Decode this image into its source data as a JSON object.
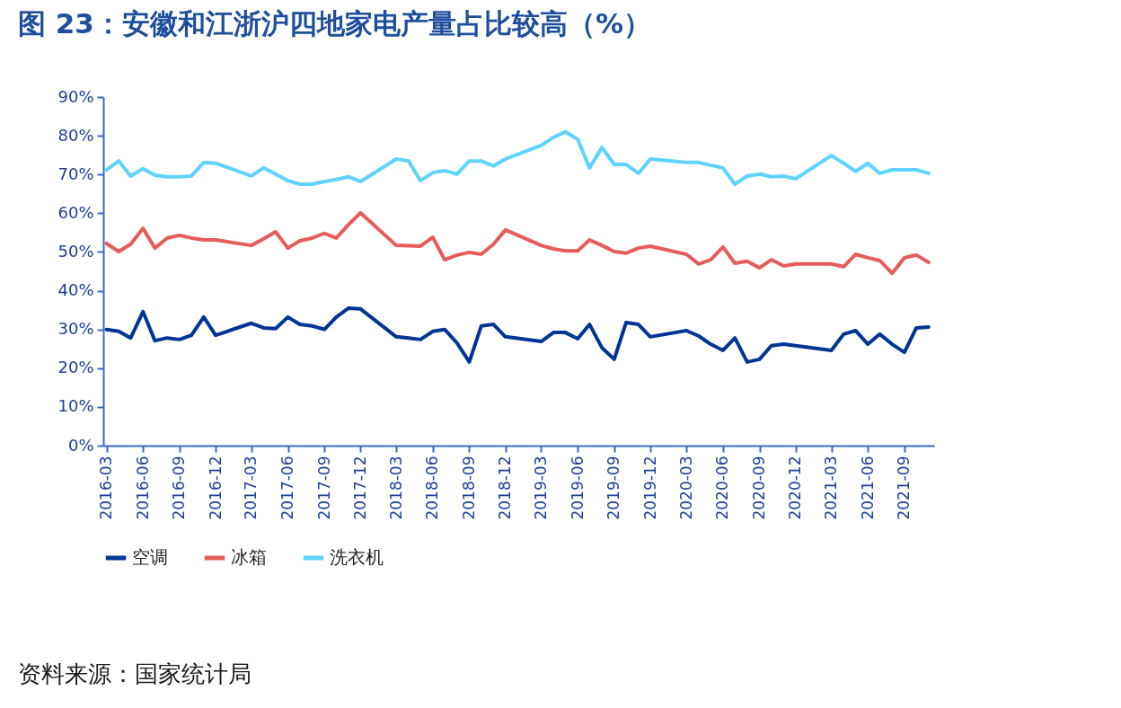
{
  "chart_data": {
    "type": "line",
    "title": "图 23：安徽和江浙沪四地家电产量占比较高（%）",
    "x": [
      "2016-03",
      "2016-04",
      "2016-05",
      "2016-06",
      "2016-07",
      "2016-08",
      "2016-09",
      "2016-10",
      "2016-11",
      "2016-12",
      "2017-03",
      "2017-04",
      "2017-05",
      "2017-06",
      "2017-07",
      "2017-08",
      "2017-09",
      "2017-10",
      "2017-11",
      "2017-12",
      "2018-03",
      "2018-04",
      "2018-05",
      "2018-06",
      "2018-07",
      "2018-08",
      "2018-09",
      "2018-10",
      "2018-11",
      "2018-12",
      "2019-03",
      "2019-04",
      "2019-05",
      "2019-06",
      "2019-07",
      "2019-08",
      "2019-09",
      "2019-10",
      "2019-11",
      "2019-12",
      "2020-03",
      "2020-04",
      "2020-05",
      "2020-06",
      "2020-07",
      "2020-08",
      "2020-09",
      "2020-10",
      "2020-11",
      "2020-12",
      "2021-03",
      "2021-04",
      "2021-05",
      "2021-06",
      "2021-07",
      "2021-08",
      "2021-09",
      "2021-10",
      "2021-11"
    ],
    "series": [
      {
        "name": "空调",
        "color": "#003595",
        "values": [
          30.0,
          29.5,
          27.8,
          34.6,
          27.1,
          27.8,
          27.4,
          28.5,
          33.2,
          28.5,
          31.6,
          30.4,
          30.2,
          33.2,
          31.3,
          30.9,
          30.0,
          33.2,
          35.5,
          35.3,
          28.1,
          27.8,
          27.4,
          29.5,
          30.0,
          26.5,
          21.6,
          30.9,
          31.3,
          28.1,
          26.9,
          29.2,
          29.2,
          27.6,
          31.3,
          25.3,
          22.3,
          31.8,
          31.3,
          28.1,
          29.7,
          28.3,
          26.2,
          24.6,
          27.8,
          21.6,
          22.3,
          25.8,
          26.2,
          25.8,
          24.6,
          28.8,
          29.7,
          26.2,
          28.8,
          26.2,
          24.1,
          30.4,
          30.6
        ]
      },
      {
        "name": "冰箱",
        "color": "#e75b5b",
        "values": [
          52.2,
          50.1,
          52.0,
          56.1,
          51.0,
          53.6,
          54.3,
          53.6,
          53.1,
          53.1,
          51.7,
          53.4,
          55.2,
          51.0,
          52.9,
          53.6,
          54.8,
          53.6,
          57.1,
          60.1,
          51.7,
          51.6,
          51.5,
          53.8,
          48.0,
          49.2,
          49.9,
          49.4,
          52.0,
          55.7,
          51.7,
          50.8,
          50.3,
          50.3,
          53.1,
          51.7,
          50.1,
          49.7,
          51.0,
          51.5,
          49.4,
          46.9,
          48.0,
          51.3,
          47.1,
          47.6,
          45.9,
          48.0,
          46.4,
          46.9,
          46.9,
          46.2,
          49.4,
          48.5,
          47.8,
          44.5,
          48.5,
          49.2,
          47.3
        ]
      },
      {
        "name": "洗衣机",
        "color": "#5fd3ff",
        "values": [
          71.2,
          73.5,
          69.6,
          71.5,
          69.8,
          69.4,
          69.4,
          69.6,
          73.1,
          72.9,
          69.6,
          71.7,
          70.1,
          68.4,
          67.5,
          67.5,
          68.2,
          68.7,
          69.4,
          68.2,
          74.0,
          73.5,
          68.4,
          70.5,
          71.0,
          70.1,
          73.5,
          73.5,
          72.2,
          74.0,
          77.5,
          79.6,
          81.0,
          79.1,
          71.7,
          77.0,
          72.6,
          72.6,
          70.3,
          74.0,
          73.1,
          73.1,
          72.4,
          71.7,
          67.5,
          69.6,
          70.1,
          69.4,
          69.6,
          68.9,
          74.9,
          72.9,
          70.8,
          72.9,
          70.3,
          71.2,
          71.2,
          71.2,
          70.3
        ]
      }
    ],
    "xlim": [
      "2016-02-22",
      "2021-11-15"
    ],
    "xticks": [
      "2016-03",
      "2016-06",
      "2016-09",
      "2016-12",
      "2017-03",
      "2017-06",
      "2017-09",
      "2017-12",
      "2018-03",
      "2018-06",
      "2018-09",
      "2018-12",
      "2019-03",
      "2019-06",
      "2019-09",
      "2019-12",
      "2020-03",
      "2020-06",
      "2020-09",
      "2020-12",
      "2021-03",
      "2021-06",
      "2021-09"
    ],
    "ylim": [
      0,
      90
    ],
    "yticks": [
      {
        "value": 0,
        "label": "0%"
      },
      {
        "value": 10,
        "label": "10%"
      },
      {
        "value": 20,
        "label": "20%"
      },
      {
        "value": 30,
        "label": "30%"
      },
      {
        "value": 40,
        "label": "40%"
      },
      {
        "value": 50,
        "label": "50%"
      },
      {
        "value": 60,
        "label": "60%"
      },
      {
        "value": 70,
        "label": "70%"
      },
      {
        "value": 80,
        "label": "80%"
      },
      {
        "value": 90,
        "label": "90%"
      }
    ],
    "grid": false,
    "legend": "bottom",
    "annotations": [
      "资料来源：国家统计局"
    ]
  }
}
